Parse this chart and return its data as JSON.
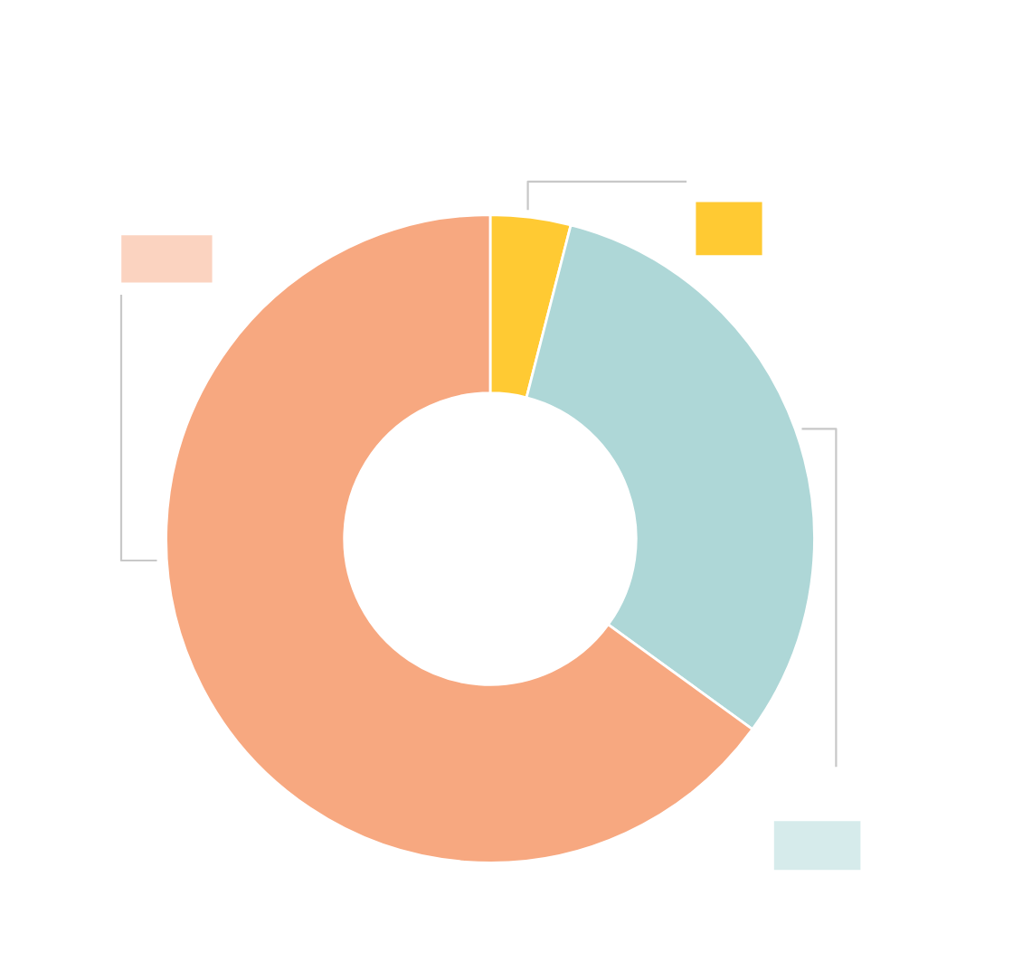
{
  "chart_data": {
    "type": "donut",
    "categories": [
      null,
      null,
      null
    ],
    "values": [
      4,
      31,
      65
    ],
    "colors": [
      "#ffca33",
      "#aed7d7",
      "#f7a880"
    ]
  }
}
